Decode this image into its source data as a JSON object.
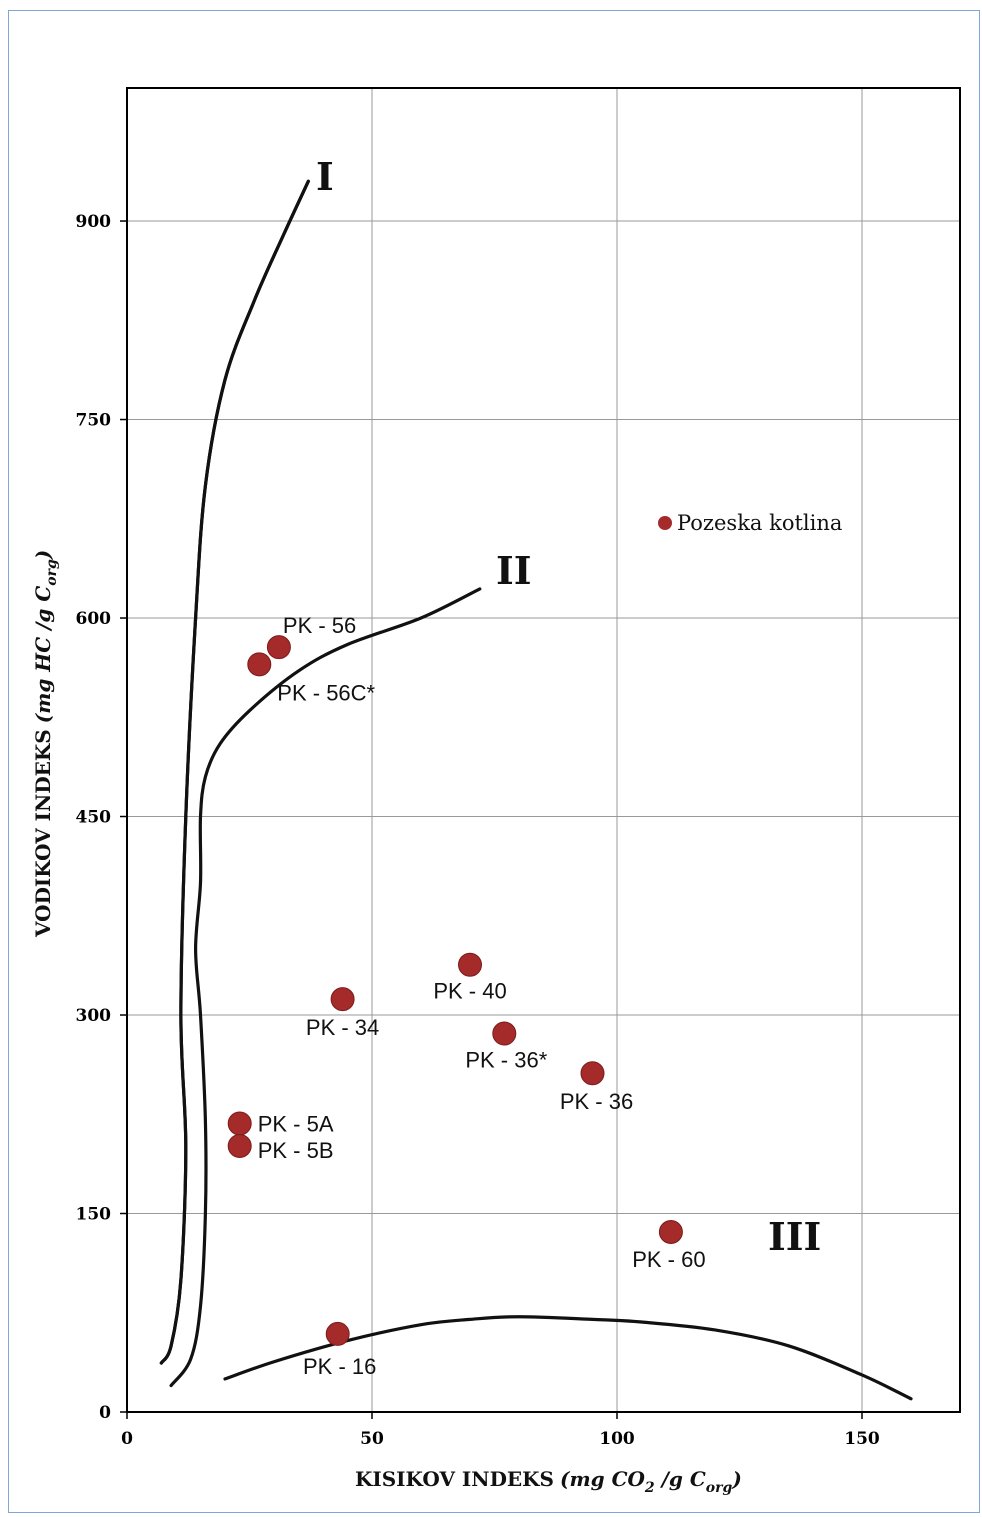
{
  "chart_data": {
    "type": "scatter",
    "xlabel": {
      "main": "KISIKOV INDEKS",
      "unit": "mg CO",
      "unit_sub": "2",
      "unit_mid": " /g C",
      "unit_sub2": "org"
    },
    "ylabel": {
      "main": "VODIKOV INDEKS",
      "unit": "mg HC /g C",
      "unit_sub": "org"
    },
    "xlim": [
      0,
      170
    ],
    "ylim": [
      0,
      1000
    ],
    "xticks": [
      0,
      50,
      100,
      150
    ],
    "yticks": [
      0,
      150,
      300,
      450,
      600,
      750,
      900
    ],
    "grid": true,
    "legend": {
      "position": "top-right",
      "label": "Pozeska kotlina",
      "color": "#a52a2a"
    },
    "point_color": "#a52a2a",
    "series": [
      {
        "name": "Pozeska kotlina",
        "points": [
          {
            "label": "PK - 56",
            "x": 31,
            "y": 578
          },
          {
            "label": "PK - 56C*",
            "x": 27,
            "y": 565
          },
          {
            "label": "PK - 40",
            "x": 70,
            "y": 338
          },
          {
            "label": "PK - 34",
            "x": 44,
            "y": 312
          },
          {
            "label": "PK - 36*",
            "x": 77,
            "y": 286
          },
          {
            "label": "PK - 36",
            "x": 95,
            "y": 256
          },
          {
            "label": "PK - 5A",
            "x": 23,
            "y": 218
          },
          {
            "label": "PK - 5B",
            "x": 23,
            "y": 201
          },
          {
            "label": "PK - 60",
            "x": 111,
            "y": 136
          },
          {
            "label": "PK - 16",
            "x": 43,
            "y": 59
          }
        ]
      }
    ],
    "curves": [
      {
        "label": "I",
        "points": [
          [
            37,
            930
          ],
          [
            32,
            890
          ],
          [
            26,
            840
          ],
          [
            20,
            780
          ],
          [
            16,
            700
          ],
          [
            14,
            600
          ],
          [
            12,
            450
          ],
          [
            11,
            300
          ],
          [
            12,
            200
          ],
          [
            11,
            100
          ],
          [
            9,
            50
          ],
          [
            7,
            37
          ]
        ]
      },
      {
        "label": "I",
        "points": [
          [
            37,
            930
          ],
          [
            32,
            890
          ],
          [
            26,
            840
          ],
          [
            20,
            780
          ],
          [
            16,
            700
          ],
          [
            14,
            600
          ],
          [
            12,
            450
          ],
          [
            11,
            300
          ],
          [
            12,
            200
          ],
          [
            11,
            100
          ],
          [
            9,
            50
          ],
          [
            7,
            37
          ]
        ]
      },
      {
        "label": "II",
        "points": [
          [
            72,
            622
          ],
          [
            60,
            600
          ],
          [
            45,
            580
          ],
          [
            35,
            560
          ],
          [
            25,
            530
          ],
          [
            19,
            505
          ],
          [
            16,
            480
          ],
          [
            15,
            450
          ],
          [
            15,
            400
          ],
          [
            14,
            350
          ],
          [
            15,
            300
          ],
          [
            16,
            220
          ],
          [
            16,
            150
          ],
          [
            15,
            80
          ],
          [
            13,
            40
          ],
          [
            9,
            20
          ]
        ]
      },
      {
        "label": "III",
        "points": [
          [
            20,
            25
          ],
          [
            30,
            38
          ],
          [
            45,
            54
          ],
          [
            60,
            66
          ],
          [
            70,
            70
          ],
          [
            80,
            72
          ],
          [
            95,
            70
          ],
          [
            105,
            68
          ],
          [
            120,
            62
          ],
          [
            135,
            50
          ],
          [
            150,
            28
          ],
          [
            160,
            10
          ]
        ]
      }
    ]
  }
}
